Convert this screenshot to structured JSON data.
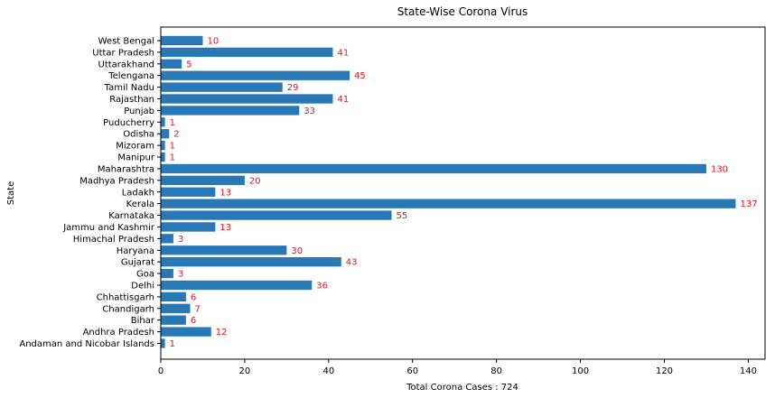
{
  "chart_data": {
    "type": "bar",
    "orientation": "horizontal",
    "title": "State-Wise Corona Virus",
    "xlabel": "Total Corona Cases : 724",
    "ylabel": "State",
    "xlim": [
      0,
      144
    ],
    "xticks": [
      0,
      20,
      40,
      60,
      80,
      100,
      120,
      140
    ],
    "grid": false,
    "categories": [
      "Andaman and Nicobar Islands",
      "Andhra Pradesh",
      "Bihar",
      "Chandigarh",
      "Chhattisgarh",
      "Delhi",
      "Goa",
      "Gujarat",
      "Haryana",
      "Himachal Pradesh",
      "Jammu and Kashmir",
      "Karnataka",
      "Kerala",
      "Ladakh",
      "Madhya Pradesh",
      "Maharashtra",
      "Manipur",
      "Mizoram",
      "Odisha",
      "Puducherry",
      "Punjab",
      "Rajasthan",
      "Tamil Nadu",
      "Telengana",
      "Uttarakhand",
      "Uttar Pradesh",
      "West Bengal"
    ],
    "values": [
      1,
      12,
      6,
      7,
      6,
      36,
      3,
      43,
      30,
      3,
      13,
      55,
      137,
      13,
      20,
      130,
      1,
      1,
      2,
      1,
      33,
      41,
      29,
      45,
      5,
      41,
      10
    ],
    "colors": {
      "bar": "#2878b5",
      "data_label": "#e8141b"
    }
  }
}
